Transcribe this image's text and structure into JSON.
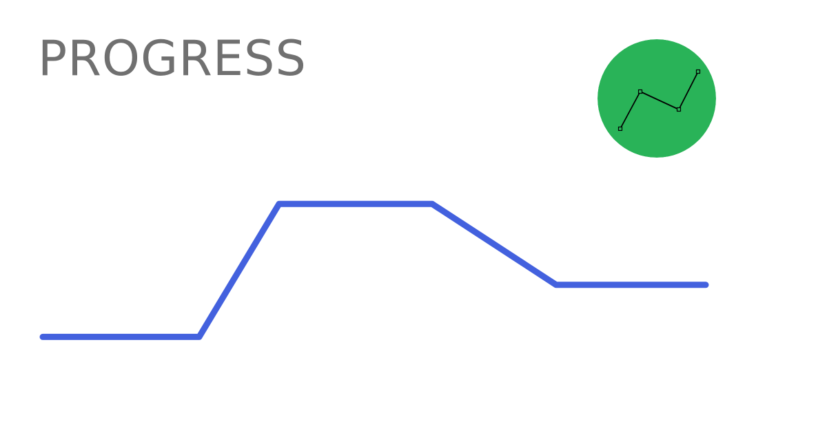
{
  "title": "PROGRESS",
  "colors": {
    "title": "#707070",
    "line": "#4361DE",
    "badge": "#29B358",
    "badge_icon": "#000000",
    "background": "#FFFFFF"
  },
  "icons": {
    "badge": "line-chart-icon"
  },
  "progress_line": {
    "levels": [
      0.18,
      0.18,
      0.64,
      0.64,
      0.36,
      0.36
    ]
  }
}
